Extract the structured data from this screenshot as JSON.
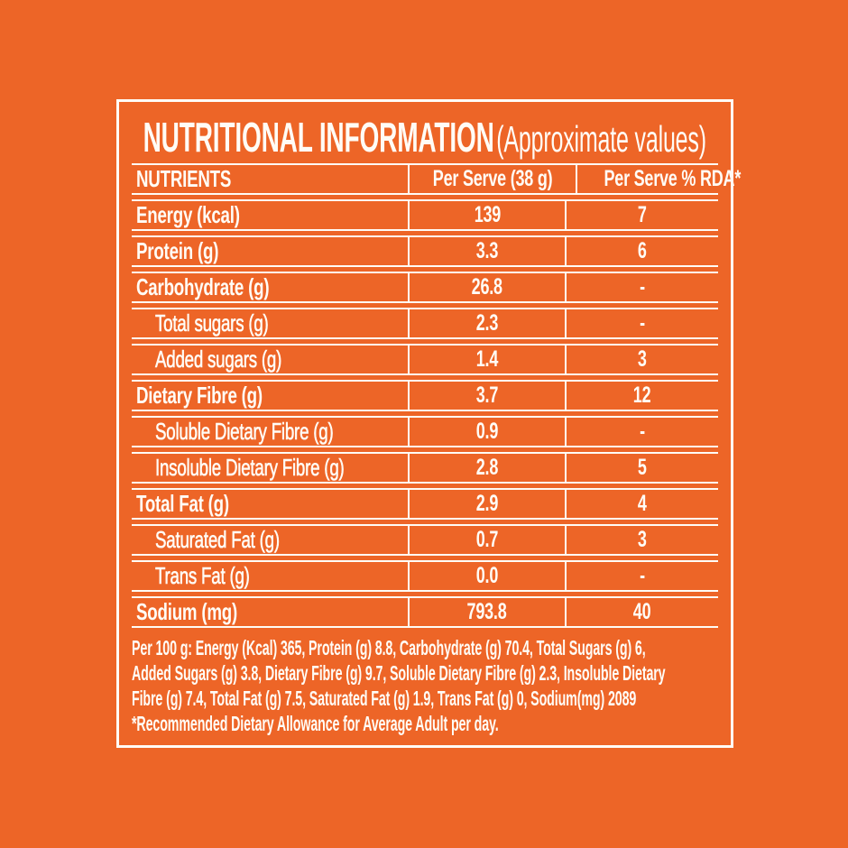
{
  "colors": {
    "bg": "#ED6527",
    "fg": "#FFFCF6"
  },
  "title": {
    "main": "NUTRITIONAL INFORMATION",
    "sub": "(Approximate values)"
  },
  "table": {
    "headers": {
      "nutrients": "NUTRIENTS",
      "per_serve": "Per Serve (38 g)",
      "per_serve_rda": "Per Serve % RDA*"
    },
    "rows": [
      {
        "label": "Energy (kcal)",
        "per_serve": "139",
        "per_serve_rda": "7"
      },
      {
        "label": "Protein (g)",
        "per_serve": "3.3",
        "per_serve_rda": "6"
      },
      {
        "label": "Carbohydrate (g)",
        "per_serve": "26.8",
        "per_serve_rda": "-"
      },
      {
        "label": "Total sugars (g)",
        "per_serve": "2.3",
        "per_serve_rda": "-"
      },
      {
        "label": "Added sugars (g)",
        "per_serve": "1.4",
        "per_serve_rda": "3"
      },
      {
        "label": "Dietary Fibre (g)",
        "per_serve": "3.7",
        "per_serve_rda": "12"
      },
      {
        "label": "Soluble Dietary Fibre (g)",
        "per_serve": "0.9",
        "per_serve_rda": "-"
      },
      {
        "label": "Insoluble Dietary Fibre (g)",
        "per_serve": "2.8",
        "per_serve_rda": "5"
      },
      {
        "label": "Total Fat (g)",
        "per_serve": "2.9",
        "per_serve_rda": "4"
      },
      {
        "label": "Saturated Fat (g)",
        "per_serve": "0.7",
        "per_serve_rda": "3"
      },
      {
        "label": "Trans Fat (g)",
        "per_serve": "0.0",
        "per_serve_rda": "-"
      },
      {
        "label": "Sodium (mg)",
        "per_serve": "793.8",
        "per_serve_rda": "40"
      }
    ]
  },
  "footer": {
    "lines": [
      "Per 100 g: Energy (Kcal) 365, Protein (g) 8.8, Carbohydrate (g) 70.4, Total Sugars (g) 6,",
      "Added Sugars (g) 3.8, Dietary Fibre (g) 9.7, Soluble Dietary Fibre (g) 2.3, Insoluble Dietary",
      "Fibre (g) 7.4, Total Fat (g) 7.5, Saturated Fat (g) 1.9, Trans Fat (g) 0, Sodium(mg) 2089",
      "*Recommended Dietary Allowance for Average Adult per day."
    ]
  }
}
